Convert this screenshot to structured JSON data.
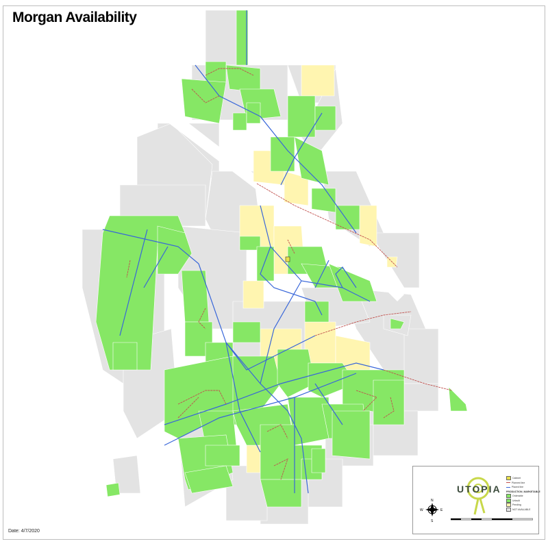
{
  "title": "Morgan Availability",
  "date": "Date: 4/7/2020",
  "colors": {
    "available": "#86e765",
    "high_interest": "#fff5b0",
    "not_available": "#e3e3e3",
    "parcel_outline": "#ffffff",
    "fiber_backbone": "#3866d9",
    "proposed_line": "#c0504d"
  },
  "legend": {
    "logo": "UTOPIA",
    "items": [
      {
        "label": "Cabinet",
        "icon": "cabinet-icon"
      },
      {
        "label": "Planned line",
        "icon": "line-icon"
      },
      {
        "label": "Placed line",
        "icon": "line-icon"
      }
    ],
    "heading": "PRODUCTION_MARKETABLE",
    "classes": [
      {
        "label": "Orderable",
        "color": "#86e765"
      },
      {
        "label": "Unbuilt",
        "color": "#86e765"
      },
      {
        "label": "Pending",
        "color": "#fff5b0"
      },
      {
        "label": "NOT AVAILABLE",
        "color": "#e3e3e3"
      }
    ],
    "compass": {
      "n": "N",
      "s": "S",
      "e": "E",
      "w": "W"
    }
  }
}
